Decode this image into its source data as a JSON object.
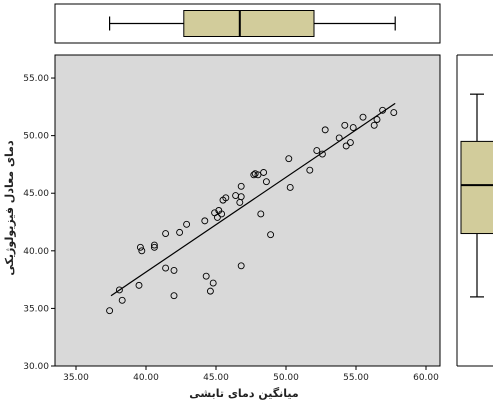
{
  "chart_data": {
    "type": "scatter",
    "title": "",
    "xlabel": "میانگین دمای تابشی",
    "ylabel": "دمای معادل فیزیولوژیکی",
    "xlim": [
      33.5,
      61.0
    ],
    "ylim": [
      30.0,
      57.0
    ],
    "x_ticks": [
      "35.00",
      "40.00",
      "45.00",
      "50.00",
      "55.00",
      "60.00"
    ],
    "y_ticks": [
      "30.00",
      "35.00",
      "40.00",
      "45.00",
      "50.00",
      "55.00"
    ],
    "grid": false,
    "background": "#d9d9d9",
    "fit_line": {
      "x": [
        37.5,
        57.8
      ],
      "y": [
        36.1,
        52.8
      ]
    },
    "points": [
      {
        "x": 37.4,
        "y": 34.8
      },
      {
        "x": 38.1,
        "y": 36.6
      },
      {
        "x": 38.3,
        "y": 35.7
      },
      {
        "x": 39.5,
        "y": 37.0
      },
      {
        "x": 39.6,
        "y": 40.3
      },
      {
        "x": 39.7,
        "y": 40.0
      },
      {
        "x": 40.6,
        "y": 40.3
      },
      {
        "x": 40.6,
        "y": 40.5
      },
      {
        "x": 41.4,
        "y": 41.5
      },
      {
        "x": 41.4,
        "y": 38.5
      },
      {
        "x": 42.0,
        "y": 38.3
      },
      {
        "x": 42.0,
        "y": 36.1
      },
      {
        "x": 42.4,
        "y": 41.6
      },
      {
        "x": 42.9,
        "y": 42.3
      },
      {
        "x": 44.2,
        "y": 42.6
      },
      {
        "x": 44.3,
        "y": 37.8
      },
      {
        "x": 44.6,
        "y": 36.5
      },
      {
        "x": 44.8,
        "y": 37.2
      },
      {
        "x": 44.9,
        "y": 43.3
      },
      {
        "x": 45.1,
        "y": 42.9
      },
      {
        "x": 45.2,
        "y": 43.5
      },
      {
        "x": 45.4,
        "y": 43.2
      },
      {
        "x": 45.5,
        "y": 44.4
      },
      {
        "x": 45.7,
        "y": 44.6
      },
      {
        "x": 46.4,
        "y": 44.8
      },
      {
        "x": 46.7,
        "y": 44.2
      },
      {
        "x": 46.8,
        "y": 44.7
      },
      {
        "x": 46.8,
        "y": 45.6
      },
      {
        "x": 46.8,
        "y": 38.7
      },
      {
        "x": 47.7,
        "y": 46.6
      },
      {
        "x": 47.8,
        "y": 46.7
      },
      {
        "x": 48.0,
        "y": 46.6
      },
      {
        "x": 48.2,
        "y": 43.2
      },
      {
        "x": 48.4,
        "y": 46.8
      },
      {
        "x": 48.6,
        "y": 46.0
      },
      {
        "x": 48.9,
        "y": 41.4
      },
      {
        "x": 50.2,
        "y": 48.0
      },
      {
        "x": 50.3,
        "y": 45.5
      },
      {
        "x": 51.7,
        "y": 47.0
      },
      {
        "x": 52.2,
        "y": 48.7
      },
      {
        "x": 52.6,
        "y": 48.4
      },
      {
        "x": 52.8,
        "y": 50.5
      },
      {
        "x": 53.8,
        "y": 49.8
      },
      {
        "x": 54.2,
        "y": 50.9
      },
      {
        "x": 54.3,
        "y": 49.1
      },
      {
        "x": 54.6,
        "y": 49.4
      },
      {
        "x": 54.8,
        "y": 50.7
      },
      {
        "x": 55.5,
        "y": 51.6
      },
      {
        "x": 56.3,
        "y": 50.9
      },
      {
        "x": 56.5,
        "y": 51.4
      },
      {
        "x": 56.9,
        "y": 52.2
      },
      {
        "x": 57.7,
        "y": 52.0
      }
    ],
    "x_boxplot": {
      "min": 37.4,
      "q1": 42.7,
      "median": 46.7,
      "q3": 52.0,
      "max": 57.8,
      "fill": "#d2cc9b"
    },
    "y_boxplot": {
      "min": 36.0,
      "q1": 41.5,
      "median": 45.7,
      "q3": 49.5,
      "max": 53.6,
      "fill": "#d2cc9b"
    }
  }
}
